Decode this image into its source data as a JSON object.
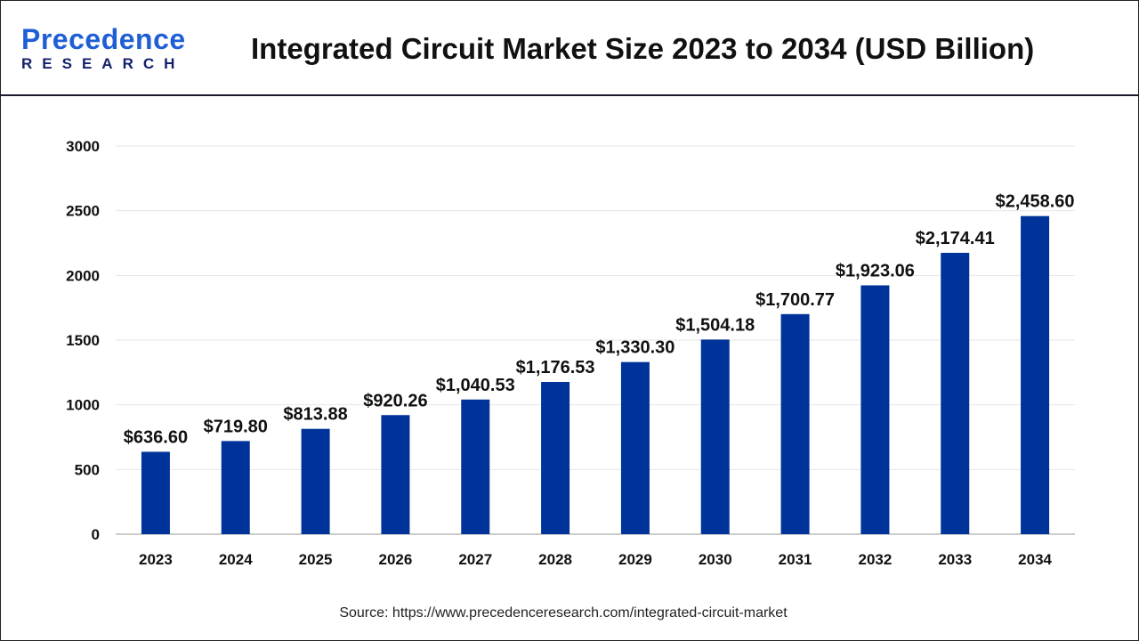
{
  "logo": {
    "main": "Precedence",
    "sub": "RESEARCH"
  },
  "chart_data": {
    "type": "bar",
    "title": "Integrated Circuit Market Size 2023 to 2034 (USD Billion)",
    "categories": [
      "2023",
      "2024",
      "2025",
      "2026",
      "2027",
      "2028",
      "2029",
      "2030",
      "2031",
      "2032",
      "2033",
      "2034"
    ],
    "values": [
      636.6,
      719.8,
      813.88,
      920.26,
      1040.53,
      1176.53,
      1330.3,
      1504.18,
      1700.77,
      1923.06,
      2174.41,
      2458.6
    ],
    "data_labels": [
      "$636.60",
      "$719.80",
      "$813.88",
      "$920.26",
      "$1,040.53",
      "$1,176.53",
      "$1,330.30",
      "$1,504.18",
      "$1,700.77",
      "$1,923.06",
      "$2,174.41",
      "$2,458.60"
    ],
    "yticks": [
      "0",
      "500",
      "1000",
      "1500",
      "2000",
      "2500",
      "3000"
    ],
    "ylim": [
      0,
      3000
    ],
    "xlabel": "",
    "ylabel": "",
    "grid": true,
    "bar_color": "#003399"
  },
  "source": "Source: https://www.precedenceresearch.com/integrated-circuit-market"
}
